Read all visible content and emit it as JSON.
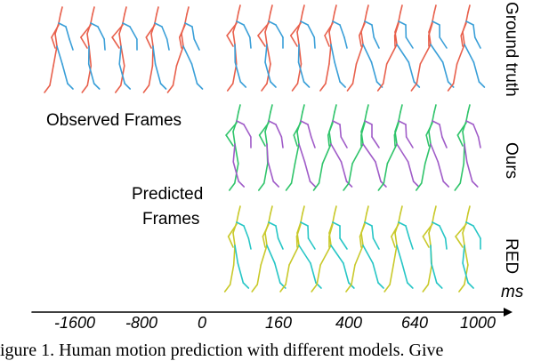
{
  "labels": {
    "observed": "Observed Frames",
    "predicted_line1": "Predicted",
    "predicted_line2": "Frames",
    "row_ground_truth": "Ground truth",
    "row_ours": "Ours",
    "row_red": "RED",
    "unit": "ms"
  },
  "timeline": {
    "ticks": [
      "-1600",
      "-800",
      "0",
      "160",
      "400",
      "640",
      "1000"
    ]
  },
  "caption": "igure 1. Human motion prediction with different models. Give",
  "rows": [
    {
      "name": "ground-truth",
      "colors": [
        "#e8604c",
        "#3a9fd8"
      ],
      "observed_count": 5,
      "predicted_count": 8
    },
    {
      "name": "ours",
      "colors": [
        "#2fc46a",
        "#a05cc8"
      ],
      "observed_count": 0,
      "predicted_count": 8
    },
    {
      "name": "red",
      "colors": [
        "#c9c92a",
        "#27c6c6"
      ],
      "observed_count": 0,
      "predicted_count": 8
    }
  ]
}
